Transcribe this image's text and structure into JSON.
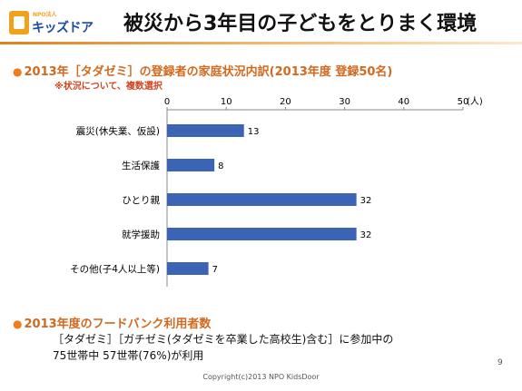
{
  "header": {
    "logo_small": "NPO法人",
    "logo_name": "キッズドア",
    "title": "被災から3年目の子どもをとりまく環境"
  },
  "section1": {
    "heading": "2013年［タダゼミ］の登録者の家庭状況内訳(2013年度 登録50名)",
    "note": "※状況について、複数選択"
  },
  "chart_data": {
    "type": "bar",
    "orientation": "horizontal",
    "categories": [
      "震災(休失業、仮設)",
      "生活保護",
      "ひとり親",
      "就学援助",
      "その他(子4人以上等)"
    ],
    "values": [
      13,
      8,
      32,
      32,
      7
    ],
    "value_labels": [
      "13",
      "8",
      "32",
      "32",
      "7"
    ],
    "x_ticks": [
      "0",
      "10",
      "20",
      "30",
      "40",
      "50"
    ],
    "x_unit": "(人)",
    "xlim": [
      0,
      50
    ],
    "bar_color": "#3b64b5",
    "grid": false,
    "axis_position": "top"
  },
  "section2": {
    "heading": "2013年度のフードバンク利用者数",
    "line1": "［タダゼミ］［ガチゼミ(タダゼミを卒業した高校生)含む］に参加中の",
    "line2": "75世帯中 57世帯(76%)が利用"
  },
  "footer": {
    "copyright": "Copyright(c)2013 NPO KidsDoor",
    "page_number": "9"
  }
}
